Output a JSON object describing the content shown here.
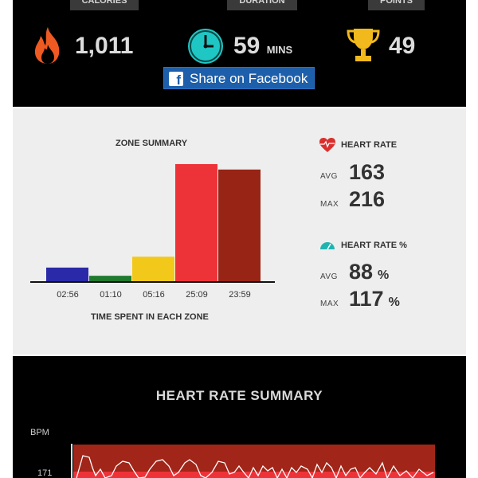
{
  "stats": {
    "calories": {
      "tab": "CALORIES",
      "value": "1,011",
      "icon": "fire-icon"
    },
    "duration": {
      "tab": "DURATION",
      "value": "59",
      "unit": "MINS",
      "icon": "clock-icon"
    },
    "points": {
      "tab": "POINTS",
      "value": "49",
      "icon": "trophy-icon"
    }
  },
  "share": {
    "label": "Share on Facebook",
    "logo": "f"
  },
  "zone_summary": {
    "title": "ZONE SUMMARY",
    "xlabel": "TIME SPENT IN EACH ZONE"
  },
  "heart_rate": {
    "title": "HEART RATE",
    "avg_label": "AVG",
    "avg": "163",
    "max_label": "MAX",
    "max": "216"
  },
  "heart_rate_pct": {
    "title": "HEART RATE %",
    "avg_label": "AVG",
    "avg": "88",
    "avg_unit": "%",
    "max_label": "MAX",
    "max": "117",
    "max_unit": "%"
  },
  "hr_summary": {
    "title": "HEART RATE SUMMARY",
    "ylabel": "BPM",
    "tick_171": "171"
  },
  "colors": {
    "zone1": "#2a2aa8",
    "zone2": "#1f7a2e",
    "zone3": "#f2c81a",
    "zone4": "#ee3338",
    "zone5": "#982416",
    "hr_band": "#a12518",
    "hr_line": "#ffffff"
  },
  "chart_data": {
    "type": "bar",
    "categories": [
      "02:56",
      "01:10",
      "05:16",
      "25:09",
      "23:59"
    ],
    "values": [
      2.93,
      1.17,
      5.27,
      25.15,
      23.98
    ],
    "title": "ZONE SUMMARY",
    "xlabel": "TIME SPENT IN EACH ZONE",
    "ylabel": "",
    "ylim": [
      0,
      26
    ]
  }
}
